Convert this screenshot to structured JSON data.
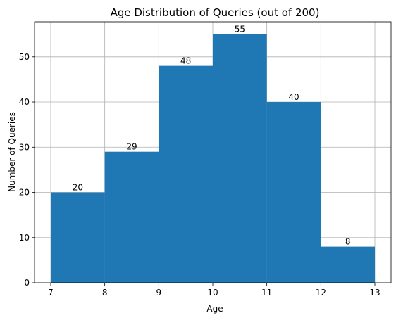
{
  "chart_data": {
    "type": "bar",
    "title": "Age Distribution of Queries (out of 200)",
    "xlabel": "Age",
    "ylabel": "Number of Queries",
    "bins": [
      {
        "start": 7,
        "end": 8,
        "value": 20
      },
      {
        "start": 8,
        "end": 9,
        "value": 29
      },
      {
        "start": 9,
        "end": 10,
        "value": 48
      },
      {
        "start": 10,
        "end": 11,
        "value": 55
      },
      {
        "start": 11,
        "end": 12,
        "value": 40
      },
      {
        "start": 12,
        "end": 13,
        "value": 8
      }
    ],
    "data_labels": [
      "20",
      "29",
      "48",
      "55",
      "40",
      "8"
    ],
    "xlim": [
      6.7,
      13.3
    ],
    "ylim": [
      0,
      57.75
    ],
    "x_ticks": [
      7,
      8,
      9,
      10,
      11,
      12,
      13
    ],
    "x_tick_labels": [
      "7",
      "8",
      "9",
      "10",
      "11",
      "12",
      "13"
    ],
    "y_ticks": [
      0,
      10,
      20,
      30,
      40,
      50
    ],
    "y_tick_labels": [
      "0",
      "10",
      "20",
      "30",
      "40",
      "50"
    ],
    "grid": true,
    "bar_color": "#1f77b4",
    "edge_color": "#1f77b4"
  }
}
